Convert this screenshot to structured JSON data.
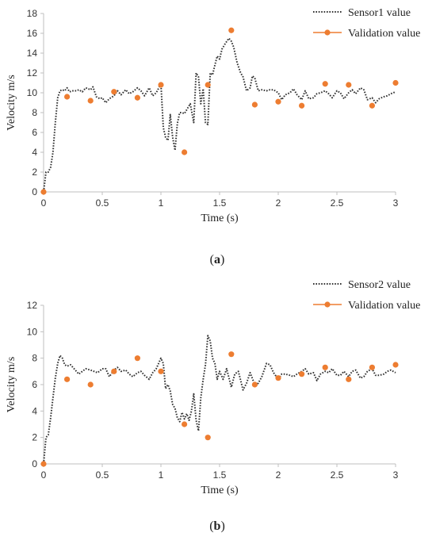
{
  "figure": {
    "panels": [
      {
        "caption_open": "(",
        "caption_letter": "a",
        "caption_close": ")"
      },
      {
        "caption_open": "(",
        "caption_letter": "b",
        "caption_close": ")"
      }
    ]
  },
  "colors": {
    "sensor_line": "#333333",
    "validation": "#ED7D31",
    "axis": "#BFBFBF"
  },
  "chart_data": [
    {
      "type": "line",
      "xlabel": "Time (s)",
      "ylabel": "Velocity m/s",
      "xlim": [
        0,
        3
      ],
      "ylim": [
        0,
        18
      ],
      "xticks": [
        0,
        0.5,
        1,
        1.5,
        2,
        2.5,
        3
      ],
      "xtick_labels": [
        "0",
        "0.5",
        "1",
        "1.5",
        "2",
        "2.5",
        "3"
      ],
      "yticks": [
        0,
        2,
        4,
        6,
        8,
        10,
        12,
        14,
        16,
        18
      ],
      "ytick_labels": [
        "0",
        "2",
        "4",
        "6",
        "8",
        "10",
        "12",
        "14",
        "16",
        "18"
      ],
      "legend_position": "top-right",
      "series": [
        {
          "name": "Sensor1 value",
          "style": "dotted-line",
          "x": [
            0,
            0.02,
            0.04,
            0.06,
            0.08,
            0.1,
            0.12,
            0.14,
            0.16,
            0.18,
            0.2,
            0.22,
            0.25,
            0.28,
            0.3,
            0.33,
            0.36,
            0.4,
            0.42,
            0.45,
            0.48,
            0.5,
            0.53,
            0.56,
            0.6,
            0.63,
            0.66,
            0.7,
            0.73,
            0.76,
            0.8,
            0.83,
            0.86,
            0.9,
            0.93,
            0.96,
            1.0,
            1.02,
            1.04,
            1.06,
            1.08,
            1.1,
            1.12,
            1.14,
            1.16,
            1.18,
            1.2,
            1.22,
            1.25,
            1.28,
            1.3,
            1.32,
            1.34,
            1.36,
            1.38,
            1.4,
            1.42,
            1.44,
            1.46,
            1.48,
            1.5,
            1.52,
            1.55,
            1.58,
            1.6,
            1.62,
            1.65,
            1.68,
            1.7,
            1.73,
            1.76,
            1.78,
            1.8,
            1.83,
            1.86,
            1.9,
            1.93,
            1.96,
            2.0,
            2.03,
            2.06,
            2.1,
            2.13,
            2.16,
            2.2,
            2.23,
            2.26,
            2.3,
            2.33,
            2.36,
            2.4,
            2.43,
            2.46,
            2.5,
            2.53,
            2.56,
            2.6,
            2.63,
            2.66,
            2.7,
            2.73,
            2.76,
            2.8,
            2.83,
            2.86,
            2.9,
            2.93,
            2.96,
            3.0
          ],
          "y": [
            0,
            2,
            2,
            2.5,
            4,
            7,
            9.5,
            10.2,
            10.3,
            10.2,
            10.5,
            10.1,
            10.2,
            10.2,
            10.3,
            10.1,
            10.5,
            10.3,
            10.6,
            9.6,
            9.4,
            9.5,
            9.0,
            9.4,
            9.7,
            10.2,
            9.8,
            10.3,
            9.9,
            10.1,
            10.5,
            10.2,
            9.7,
            10.5,
            9.7,
            10.0,
            10.9,
            6.5,
            5.5,
            5.2,
            7.8,
            5.5,
            4.2,
            6.9,
            8.0,
            8.0,
            7.9,
            8.3,
            8.9,
            7.0,
            12.0,
            11.6,
            8.9,
            10.4,
            7.0,
            6.8,
            12.0,
            11.8,
            12.8,
            13.7,
            13.4,
            14.4,
            15.0,
            15.5,
            15.2,
            14.6,
            13.0,
            12.0,
            11.6,
            10.2,
            10.5,
            11.7,
            11.5,
            10.2,
            10.3,
            10.2,
            10.3,
            10.3,
            10.0,
            9.3,
            9.8,
            10.0,
            10.4,
            9.8,
            9.3,
            10.2,
            9.4,
            9.5,
            9.9,
            10.0,
            10.2,
            9.9,
            9.5,
            10.2,
            10.0,
            9.4,
            10.0,
            10.3,
            9.9,
            10.5,
            10.3,
            9.3,
            9.5,
            9.0,
            9.4,
            9.6,
            9.7,
            9.9,
            10.1
          ]
        },
        {
          "name": "Validation value",
          "style": "markers",
          "x": [
            0,
            0.2,
            0.4,
            0.6,
            0.8,
            1.0,
            1.2,
            1.4,
            1.6,
            1.8,
            2.0,
            2.2,
            2.4,
            2.6,
            2.8,
            3.0
          ],
          "y": [
            0,
            9.6,
            9.2,
            10.1,
            9.5,
            10.8,
            4.0,
            10.8,
            16.3,
            8.8,
            9.1,
            8.7,
            10.9,
            10.8,
            8.7,
            11.0
          ]
        }
      ]
    },
    {
      "type": "line",
      "xlabel": "Time (s)",
      "ylabel": "Velocity m/s",
      "xlim": [
        0,
        3
      ],
      "ylim": [
        0,
        12
      ],
      "xticks": [
        0,
        0.5,
        1,
        1.5,
        2,
        2.5,
        3
      ],
      "xtick_labels": [
        "0",
        "0.5",
        "1",
        "1.5",
        "2",
        "2.5",
        "3"
      ],
      "yticks": [
        0,
        2,
        4,
        6,
        8,
        10,
        12
      ],
      "ytick_labels": [
        "0",
        "2",
        "4",
        "6",
        "8",
        "10",
        "12"
      ],
      "legend_position": "top-right",
      "series": [
        {
          "name": "Sensor2 value",
          "style": "dotted-line",
          "x": [
            0,
            0.02,
            0.04,
            0.06,
            0.08,
            0.1,
            0.12,
            0.14,
            0.16,
            0.18,
            0.2,
            0.23,
            0.26,
            0.3,
            0.33,
            0.36,
            0.4,
            0.43,
            0.46,
            0.5,
            0.53,
            0.56,
            0.6,
            0.63,
            0.66,
            0.7,
            0.73,
            0.76,
            0.8,
            0.83,
            0.86,
            0.9,
            0.93,
            0.96,
            1.0,
            1.02,
            1.04,
            1.06,
            1.08,
            1.1,
            1.12,
            1.14,
            1.16,
            1.18,
            1.2,
            1.22,
            1.24,
            1.26,
            1.28,
            1.3,
            1.32,
            1.34,
            1.36,
            1.38,
            1.4,
            1.42,
            1.44,
            1.46,
            1.48,
            1.5,
            1.53,
            1.56,
            1.6,
            1.63,
            1.66,
            1.7,
            1.73,
            1.76,
            1.8,
            1.83,
            1.86,
            1.9,
            1.93,
            1.96,
            2.0,
            2.03,
            2.06,
            2.1,
            2.13,
            2.16,
            2.2,
            2.23,
            2.26,
            2.3,
            2.33,
            2.36,
            2.4,
            2.43,
            2.46,
            2.5,
            2.53,
            2.56,
            2.6,
            2.63,
            2.66,
            2.7,
            2.73,
            2.76,
            2.8,
            2.83,
            2.86,
            2.9,
            2.93,
            2.96,
            3.0
          ],
          "y": [
            0,
            2.0,
            2.2,
            3.5,
            5.0,
            6.5,
            7.6,
            8.2,
            8.0,
            7.5,
            7.4,
            7.5,
            7.2,
            6.8,
            7.0,
            7.2,
            7.1,
            7.0,
            6.9,
            7.2,
            7.2,
            6.6,
            7.1,
            7.3,
            7.0,
            7.1,
            6.8,
            6.6,
            6.9,
            7.0,
            6.7,
            6.4,
            6.9,
            7.2,
            8.0,
            7.6,
            5.7,
            6.0,
            5.5,
            4.5,
            4.2,
            3.5,
            3.2,
            3.9,
            3.4,
            3.8,
            3.3,
            4.0,
            5.3,
            3.3,
            2.5,
            5.0,
            6.4,
            7.5,
            9.7,
            9.3,
            8.0,
            7.6,
            6.4,
            7.0,
            6.4,
            7.2,
            5.8,
            6.8,
            7.0,
            5.6,
            6.1,
            6.9,
            6.0,
            6.1,
            6.6,
            7.6,
            7.5,
            6.9,
            6.4,
            6.8,
            6.8,
            6.7,
            6.6,
            6.8,
            7.0,
            7.2,
            6.8,
            6.9,
            6.3,
            6.8,
            7.0,
            6.9,
            7.2,
            6.7,
            6.7,
            7.0,
            6.6,
            7.0,
            7.1,
            6.5,
            6.6,
            7.0,
            7.2,
            6.7,
            6.7,
            6.8,
            7.0,
            7.1,
            6.9
          ]
        },
        {
          "name": "Validation value",
          "style": "markers",
          "x": [
            0,
            0.2,
            0.4,
            0.6,
            0.8,
            1.0,
            1.2,
            1.4,
            1.6,
            1.8,
            2.0,
            2.2,
            2.4,
            2.6,
            2.8,
            3.0
          ],
          "y": [
            0,
            6.4,
            6.0,
            7.0,
            8.0,
            7.0,
            3.0,
            2.0,
            8.3,
            6.0,
            6.5,
            6.8,
            7.3,
            6.4,
            7.3,
            7.5
          ]
        }
      ]
    }
  ]
}
